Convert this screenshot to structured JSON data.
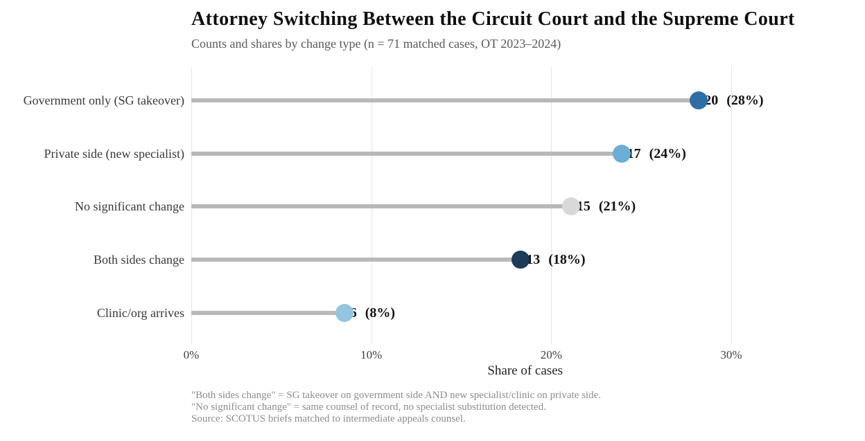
{
  "header": {
    "title": "Attorney Switching Between the Circuit Court and the Supreme Court",
    "subtitle": "Counts and shares by change type (n = 71 matched cases, OT 2023–2024)"
  },
  "chart_data": {
    "type": "lollipop",
    "title": "Attorney Switching Between the Circuit Court and the Supreme Court",
    "subtitle": "Counts and shares by change type (n = 71 matched cases, OT 2023–2024)",
    "n_total": 71,
    "categories": [
      "Government only (SG takeover)",
      "Private side (new specialist)",
      "No significant change",
      "Both sides change",
      "Clinic/org arrives"
    ],
    "counts": [
      20,
      17,
      15,
      13,
      6
    ],
    "values_pct": [
      28.2,
      23.9,
      21.1,
      18.3,
      8.5
    ],
    "value_labels": [
      "20 (28%)",
      "17 (24%)",
      "15 (21%)",
      "13 (18%)",
      "6 (8%)"
    ],
    "dot_colors": [
      "#2d6ea6",
      "#6baed6",
      "#d9d9d9",
      "#1c3a59",
      "#93c5de"
    ],
    "stem_color": "#b9b9b9",
    "gridline_color": "#e4e4e4",
    "grid": "vertical",
    "xlabel": "Share of cases",
    "x_ticks": [
      "0%",
      "10%",
      "20%",
      "30%"
    ],
    "x_tick_values": [
      0,
      10,
      20,
      30
    ],
    "xlim": [
      0,
      37.1
    ]
  },
  "rows": [
    {
      "label": "Government only (SG takeover)",
      "count": "20",
      "share": "(28%)",
      "pct": 28.2,
      "color": "#2d6ea6"
    },
    {
      "label": "Private side (new specialist)",
      "count": "17",
      "share": "(24%)",
      "pct": 23.9,
      "color": "#6baed6"
    },
    {
      "label": "No significant change",
      "count": "15",
      "share": "(21%)",
      "pct": 21.1,
      "color": "#d9d9d9"
    },
    {
      "label": "Both sides change",
      "count": "13",
      "share": "(18%)",
      "pct": 18.3,
      "color": "#1c3a59"
    },
    {
      "label": "Clinic/org arrives",
      "count": "6",
      "share": "(8%)",
      "pct": 8.5,
      "color": "#93c5de"
    }
  ],
  "axis": {
    "ticks": [
      "0%",
      "10%",
      "20%",
      "30%"
    ],
    "tick_values": [
      0,
      10,
      20,
      30
    ],
    "xlabel": "Share of cases"
  },
  "footnotes": {
    "line1": "\"Both sides change\" = SG takeover on government side AND new specialist/clinic on private side.",
    "line2": "\"No significant change\" = same counsel of record, no specialist substitution detected.",
    "line3": "Source: SCOTUS briefs matched to intermediate appeals counsel."
  }
}
